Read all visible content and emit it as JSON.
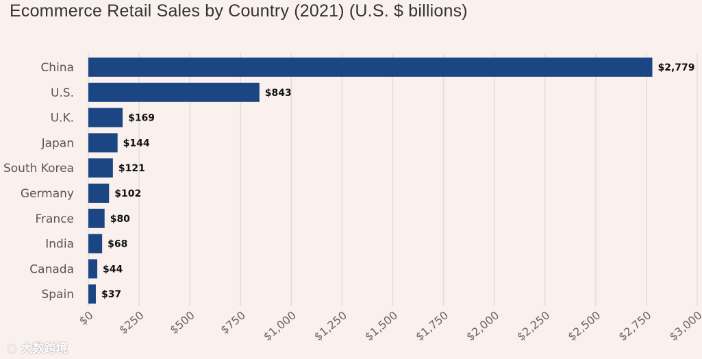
{
  "chart_data": {
    "type": "bar",
    "orientation": "horizontal",
    "title": "Ecommerce Retail Sales by Country (2021) (U.S. $ billions)",
    "categories": [
      "China",
      "U.S.",
      "U.K.",
      "Japan",
      "South Korea",
      "Germany",
      "France",
      "India",
      "Canada",
      "Spain"
    ],
    "values": [
      2779,
      843,
      169,
      144,
      121,
      102,
      80,
      68,
      44,
      37
    ],
    "data_labels": [
      "$2,779",
      "$843",
      "$169",
      "$144",
      "$121",
      "$102",
      "$80",
      "$68",
      "$44",
      "$37"
    ],
    "xticks": [
      0,
      250,
      500,
      750,
      1000,
      1250,
      1500,
      1750,
      2000,
      2250,
      2500,
      2750,
      3000
    ],
    "xtick_labels": [
      "$0",
      "$250",
      "$500",
      "$750",
      "$1,000",
      "$1,250",
      "$1,500",
      "$1,750",
      "$2,000",
      "$2,250",
      "$2,500",
      "$2,750",
      "$3,000"
    ],
    "xlim": [
      0,
      3000
    ],
    "xlabel": "",
    "ylabel": "",
    "grid": true,
    "bar_color": "#1c4683"
  },
  "watermark": "大数跨境"
}
